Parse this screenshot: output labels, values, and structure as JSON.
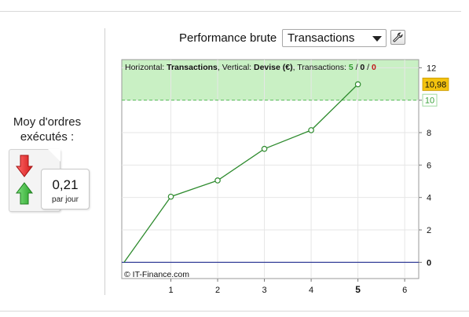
{
  "left_panel": {
    "title_line1": "Moy d'ordres",
    "title_line2": "exécutés :",
    "value": "0,21",
    "unit": "par jour",
    "icons": [
      "arrow-down-red-icon",
      "arrow-up-green-icon"
    ]
  },
  "header": {
    "label": "Performance brute",
    "select_value": "Transactions",
    "settings_icon": "wrench-icon"
  },
  "chart_info": {
    "prefix_horizontal": "Horizontal: ",
    "horizontal_value": "Transactions",
    "prefix_vertical": ", Vertical: ",
    "vertical_value": "Devise (€)",
    "prefix_transactions": ", Transactions: ",
    "count_total": "5",
    "sep1": " / ",
    "count_mid": "0",
    "sep2": " / ",
    "count_last": "0",
    "copyright": "© IT-Finance.com"
  },
  "chart_data": {
    "type": "line",
    "x": [
      0,
      1,
      2,
      3,
      4,
      5
    ],
    "y": [
      0,
      4.05,
      5.05,
      7.0,
      8.15,
      10.98
    ],
    "xlim": [
      -0.05,
      6.3
    ],
    "ylim": [
      -1,
      12.5
    ],
    "x_ticks": [
      "1",
      "2",
      "3",
      "4",
      "5",
      "6"
    ],
    "x_tick_bold": "5",
    "y_ticks": [
      "0",
      "2",
      "4",
      "6",
      "8",
      "10",
      "12"
    ],
    "target_value": 10,
    "target_label": "10",
    "last_value_label": "10,98",
    "baseline_value": 0,
    "grid": true,
    "colors": {
      "line": "#2e8b2e",
      "marker_fill": "#ffffff",
      "band": "#c9f0c4",
      "target_line": "#58c058",
      "baseline": "#1f2a8f",
      "last_badge": "#f3c20e",
      "count_green": "#2e9a2e",
      "count_red": "#c01818"
    }
  }
}
